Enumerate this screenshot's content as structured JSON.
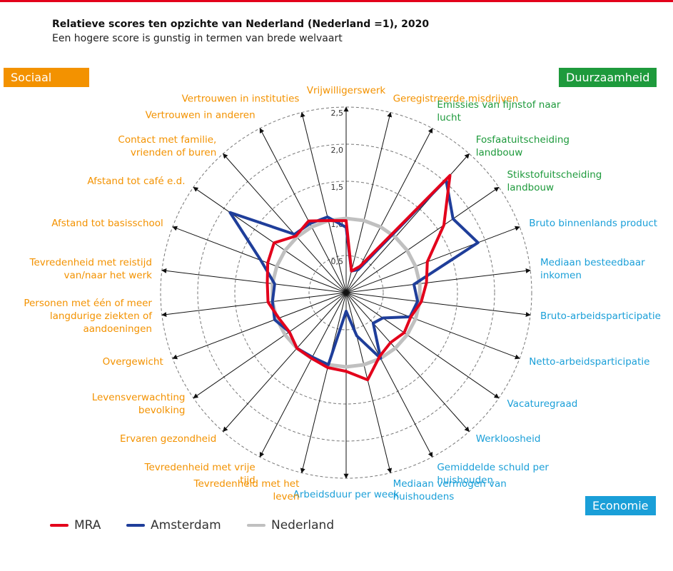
{
  "chart_data": {
    "type": "radar",
    "title": "Relatieve scores ten opzichte van Nederland (Nederland =1), 2020",
    "subtitle": "Een hogere score is gunstig in termen van brede welvaart",
    "groups": [
      {
        "name": "Sociaal",
        "color": "#f39200"
      },
      {
        "name": "Duurzaamheid",
        "color": "#1e9a3c"
      },
      {
        "name": "Economie",
        "color": "#1a9fd8"
      }
    ],
    "categories": [
      "Vrijwilligerswerk",
      "Geregistreerde misdrijven",
      "Emissies van fijnstof naar lucht",
      "Fosfaatuitscheiding landbouw",
      "Stikstofuitscheiding landbouw",
      "Bruto binnenlands product",
      "Mediaan besteedbaar inkomen",
      "Bruto-arbeidsparticipatie",
      "Netto-arbeidsparticipatie",
      "Vacaturegraad",
      "Werkloosheid",
      "Gemiddelde schuld per huishouden",
      "Mediaan vermogen van huishoudens",
      "Arbeidsduur per week",
      "Tevredenheid met het leven",
      "Tevredenheid met vrije tijd",
      "Ervaren gezondheid",
      "Levensverwachting bevolking",
      "Overgewicht",
      "Personen met één of meer langdurige ziekten of aandoeningen",
      "Tevredenheid met reistijd van/naar het werk",
      "Afstand tot basisschool",
      "Afstand tot café e.d.",
      "Contact met familie, vrienden of buren",
      "Vertrouwen in anderen",
      "Vertrouwen in instituties"
    ],
    "category_groups": [
      0,
      0,
      1,
      1,
      1,
      2,
      2,
      2,
      2,
      2,
      2,
      2,
      2,
      2,
      0,
      0,
      0,
      0,
      0,
      0,
      0,
      0,
      0,
      0,
      0,
      0
    ],
    "series": [
      {
        "name": "Nederland",
        "color": "#c0c0c0",
        "values": [
          1,
          1,
          1,
          1,
          1,
          1,
          1,
          1,
          1,
          1,
          1,
          1,
          1,
          1,
          1,
          1,
          1,
          1,
          1,
          1,
          1,
          1,
          1,
          1,
          1,
          1
        ]
      },
      {
        "name": "Amsterdam",
        "color": "#1f3e9a",
        "values": [
          0.88,
          0.3,
          0.35,
          2.03,
          1.75,
          1.9,
          0.92,
          0.97,
          0.92,
          0.6,
          0.55,
          1.0,
          0.6,
          0.25,
          1.0,
          0.98,
          1.0,
          0.93,
          1.03,
          1.0,
          0.97,
          1.23,
          1.9,
          1.05,
          1.05,
          1.05
        ]
      },
      {
        "name": "MRA",
        "color": "#e3001b",
        "values": [
          0.97,
          0.3,
          0.4,
          2.11,
          1.6,
          1.17,
          1.09,
          1.02,
          0.93,
          0.95,
          0.9,
          0.97,
          1.21,
          1.06,
          1.04,
          1.0,
          1.0,
          0.93,
          0.97,
          1.06,
          1.07,
          1.13,
          1.18,
          1.02,
          1.09,
          1.0
        ]
      }
    ],
    "legend_order": [
      2,
      1,
      0
    ],
    "ylim": [
      0,
      2.5
    ],
    "yticks": [
      {
        "value": 0.5,
        "label": "0,5"
      },
      {
        "value": 1.0,
        "label": "1,0"
      },
      {
        "value": 1.5,
        "label": "1,5"
      },
      {
        "value": 2.0,
        "label": "2,0"
      },
      {
        "value": 2.5,
        "label": "2,5"
      }
    ]
  }
}
